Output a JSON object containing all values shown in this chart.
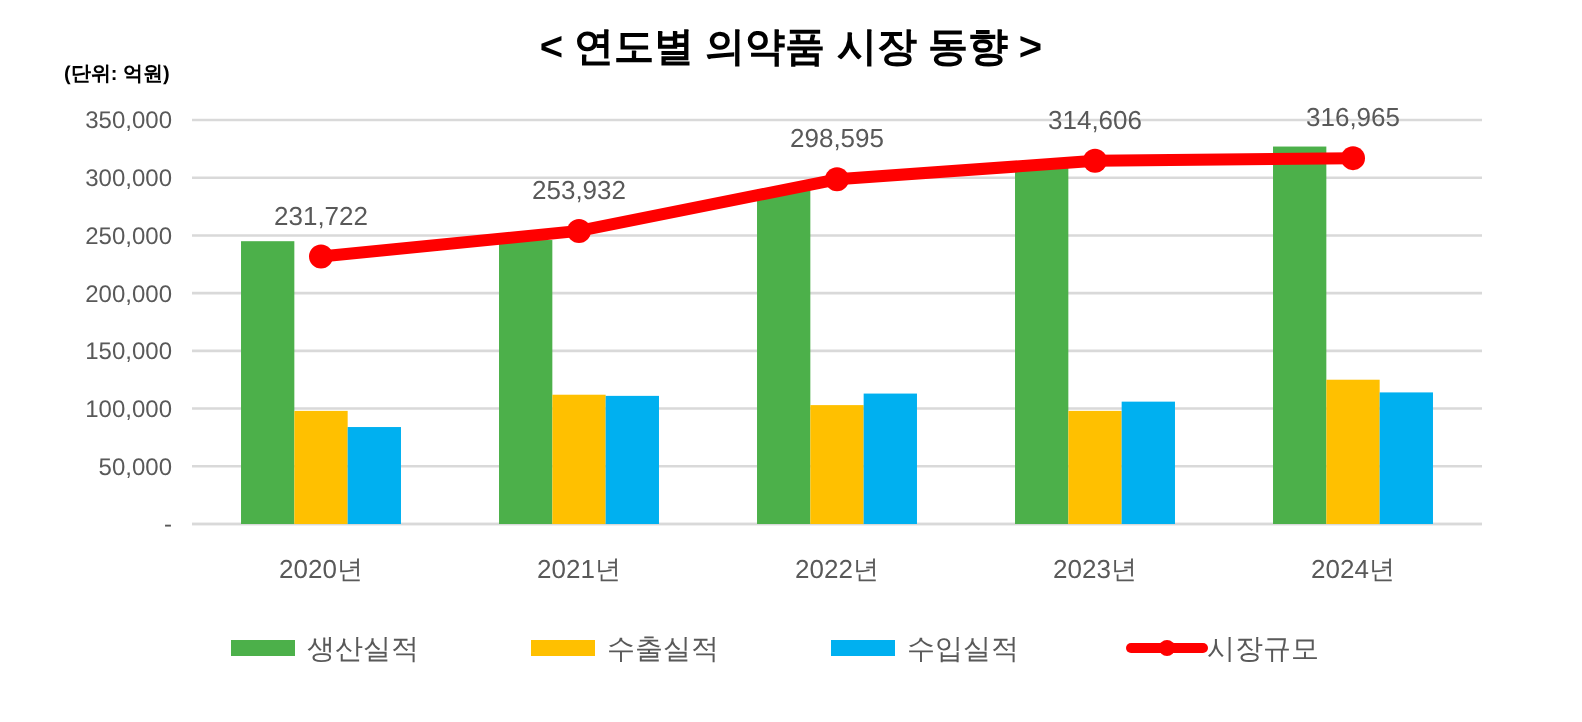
{
  "chart_data": {
    "type": "bar",
    "title": "< 연도별 의약품 시장 동향 >",
    "annotations": [
      "(단위: 억원)"
    ],
    "categories": [
      "2020년",
      "2021년",
      "2022년",
      "2023년",
      "2024년"
    ],
    "series": [
      {
        "name": "생산실적",
        "color": "#4cb04a",
        "values": [
          245000,
          246000,
          290000,
          310000,
          327000
        ]
      },
      {
        "name": "수출실적",
        "color": "#ffc000",
        "values": [
          98000,
          112000,
          103000,
          98000,
          125000
        ]
      },
      {
        "name": "수입실적",
        "color": "#00b0f0",
        "values": [
          84000,
          111000,
          113000,
          106000,
          114000
        ]
      },
      {
        "name": "시장규모",
        "type": "line",
        "color": "#ff0000",
        "marker": "circle",
        "values": [
          231722,
          253932,
          298595,
          314606,
          316965
        ],
        "value_labels": [
          "231,722",
          "253,932",
          "298,595",
          "314,606",
          "316,965"
        ]
      }
    ],
    "ylim": [
      0,
      350000
    ],
    "yticks": [
      {
        "value": 0,
        "label": "-"
      },
      {
        "value": 50000,
        "label": "50,000"
      },
      {
        "value": 100000,
        "label": "100,000"
      },
      {
        "value": 150000,
        "label": "150,000"
      },
      {
        "value": 200000,
        "label": "200,000"
      },
      {
        "value": 250000,
        "label": "250,000"
      },
      {
        "value": 300000,
        "label": "300,000"
      },
      {
        "value": 350000,
        "label": "350,000"
      }
    ],
    "grid": "y",
    "legend": "bottom"
  }
}
